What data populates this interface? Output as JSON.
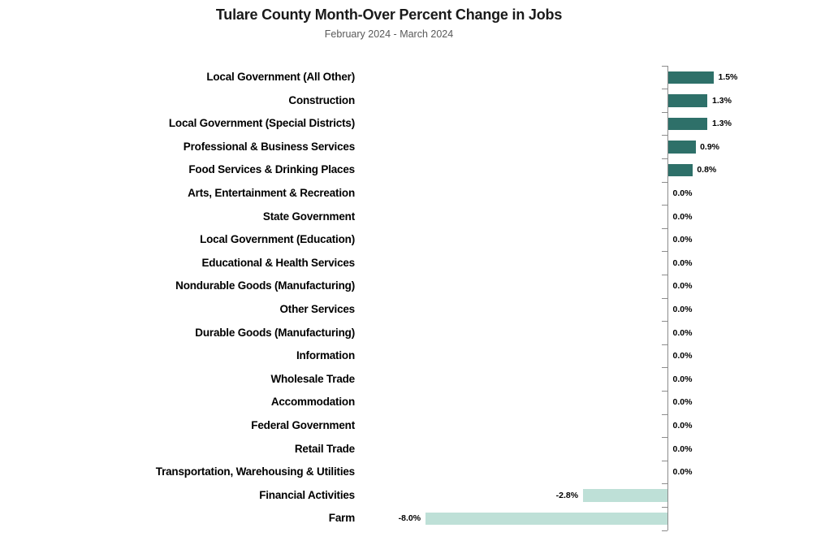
{
  "title": "Tulare County Month-Over Percent Change in Jobs",
  "subtitle": "February 2024 - March 2024",
  "colors": {
    "positive_bar": "#2E7069",
    "negative_bar": "#BEE0D7",
    "axis_line": "#8C8C8C",
    "title_text": "#1A1A1A",
    "subtitle_text": "#595959",
    "label_text": "#000000"
  },
  "chart_data": {
    "type": "bar",
    "orientation": "horizontal",
    "title": "Tulare County Month-Over Percent Change in Jobs",
    "subtitle": "February 2024 - March 2024",
    "unit": "%",
    "xlabel": "",
    "ylabel": "",
    "gridlines": false,
    "legend": false,
    "categories": [
      "Local Government (All Other)",
      "Construction",
      "Local Government (Special Districts)",
      "Professional & Business Services",
      "Food Services & Drinking Places",
      "Arts, Entertainment & Recreation",
      "State Government",
      "Local Government (Education)",
      "Educational & Health Services",
      "Nondurable Goods (Manufacturing)",
      "Other Services",
      "Durable Goods (Manufacturing)",
      "Information",
      "Wholesale Trade",
      "Accommodation",
      "Federal Government",
      "Retail Trade",
      "Transportation, Warehousing & Utilities",
      "Financial Activities",
      "Farm"
    ],
    "values": [
      1.5,
      1.3,
      1.3,
      0.9,
      0.8,
      0.0,
      0.0,
      0.0,
      0.0,
      0.0,
      0.0,
      0.0,
      0.0,
      0.0,
      0.0,
      0.0,
      0.0,
      0.0,
      -2.8,
      -8.0
    ],
    "value_labels": [
      "1.5%",
      "1.3%",
      "1.3%",
      "0.9%",
      "0.8%",
      "0.0%",
      "0.0%",
      "0.0%",
      "0.0%",
      "0.0%",
      "0.0%",
      "0.0%",
      "0.0%",
      "0.0%",
      "0.0%",
      "0.0%",
      "0.0%",
      "0.0%",
      "-2.8%",
      "-8.0%"
    ]
  }
}
